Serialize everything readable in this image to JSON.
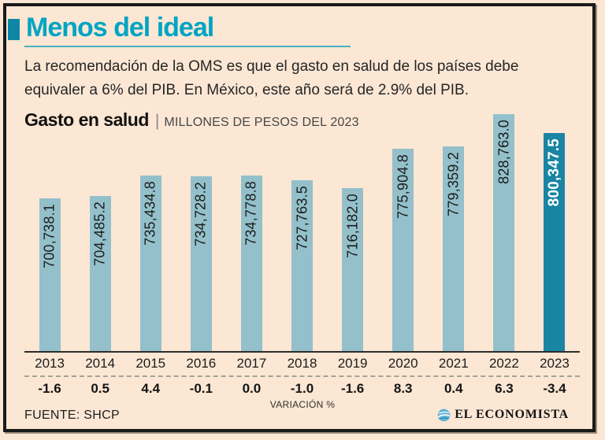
{
  "header": {
    "title": "Menos del ideal",
    "description_lines": [
      "La recomendación de la OMS es que el gasto en salud de los países debe",
      "equivaler a 6% del PIB. En México, este año será de 2.9% del PIB."
    ]
  },
  "chart_header": {
    "title": "Gasto en salud",
    "separator": "|",
    "subtitle": "MILLONES DE PESOS DEL 2023"
  },
  "chart_data": {
    "type": "bar",
    "title": "Gasto en salud",
    "subtitle": "MILLONES DE PESOS DEL 2023",
    "categories": [
      "2013",
      "2014",
      "2015",
      "2016",
      "2017",
      "2018",
      "2019",
      "2020",
      "2021",
      "2022",
      "2023"
    ],
    "values": [
      700738.1,
      704485.2,
      735434.8,
      734728.2,
      734778.8,
      727763.5,
      716182.0,
      775904.8,
      779359.2,
      828763.0,
      800347.5
    ],
    "value_labels": [
      "700,738.1",
      "704,485.2",
      "735,434.8",
      "734,728.2",
      "734,778.8",
      "727,763.5",
      "716,182.0",
      "775,904.8",
      "779,359.2",
      "828,763.0",
      "800,347.5"
    ],
    "variation_pct": [
      -1.6,
      0.5,
      4.4,
      -0.1,
      0.0,
      -1.0,
      -1.6,
      8.3,
      0.4,
      6.3,
      -3.4
    ],
    "variation_labels": [
      "-1.6",
      "0.5",
      "4.4",
      "-0.1",
      "0.0",
      "-1.0",
      "-1.6",
      "8.3",
      "0.4",
      "6.3",
      "-3.4"
    ],
    "variation_axis_label": "VARIACIÓN %",
    "highlight_index": 10,
    "ylim": [
      468000,
      830000
    ],
    "grid": false,
    "legend": false,
    "colors": {
      "bar": "#93c0ca",
      "bar_highlight": "#1a85a2",
      "accent_title": "#00a4c4",
      "background": "#fbe7d4",
      "label_on_bar": "#1b1b1b",
      "label_on_highlight": "#ffffff"
    }
  },
  "footer": {
    "source": "FUENTE: SHCP",
    "brand": "EL ECONOMISTA"
  }
}
